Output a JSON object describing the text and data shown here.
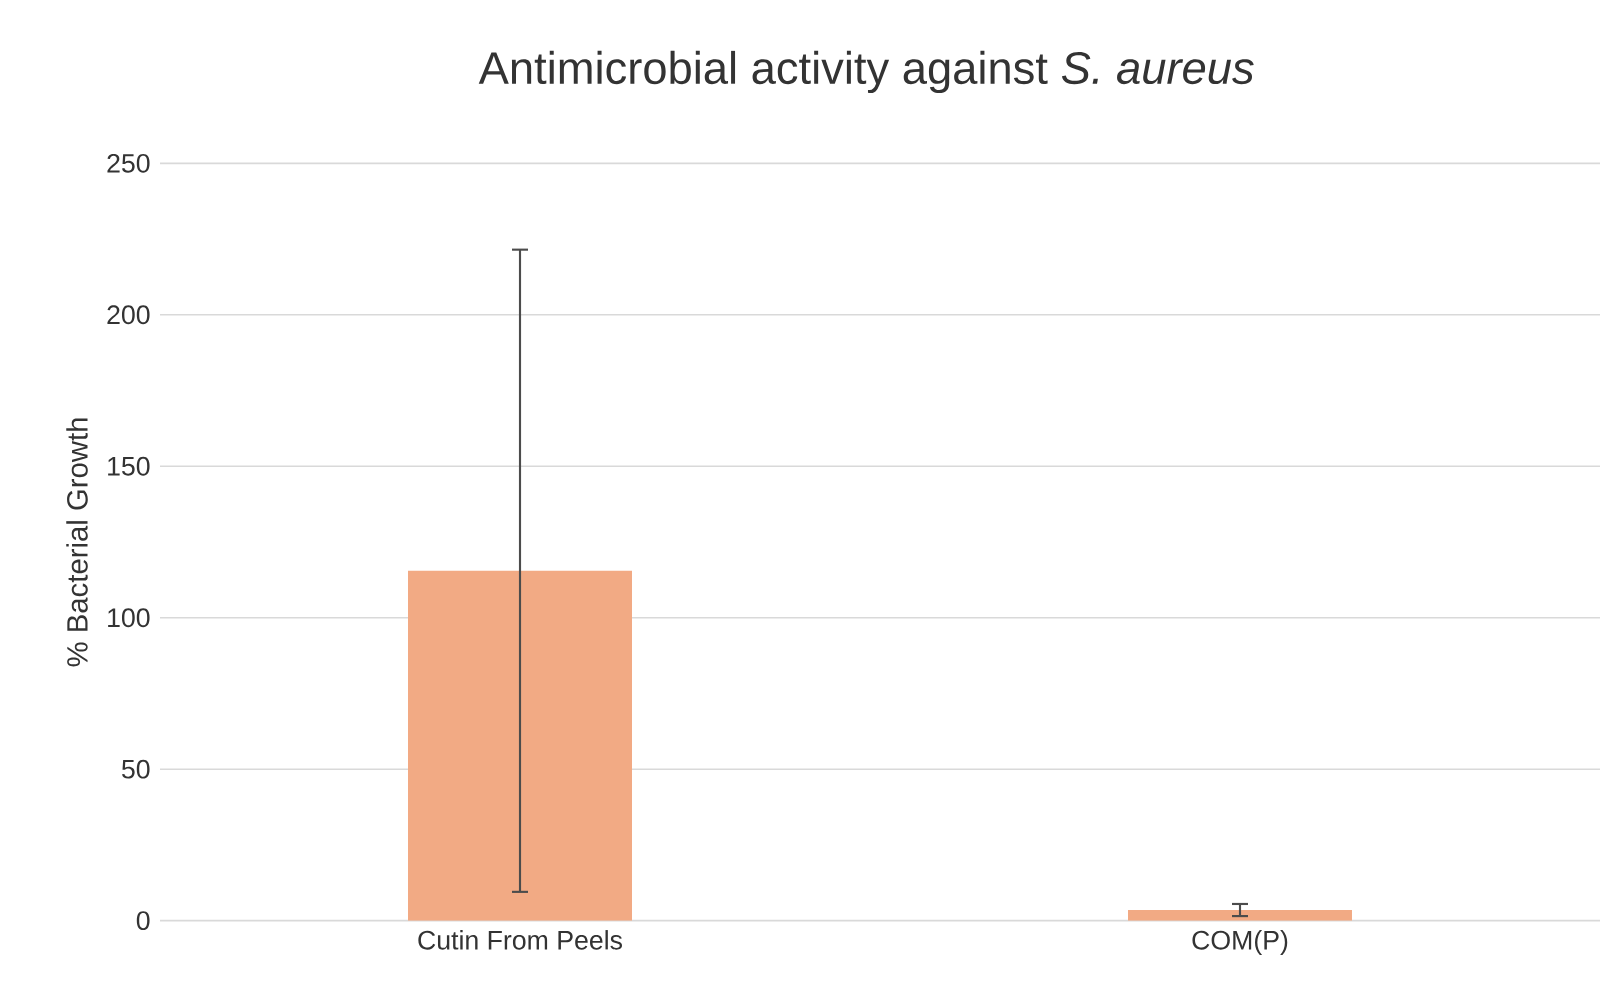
{
  "chart_data": {
    "type": "bar",
    "title": "Antimicrobial activity against *S. aureus*",
    "ylabel": "% Bacterial Growth",
    "categories": [
      "Cutin From Peels",
      "COM(P)"
    ],
    "values": [
      115.5,
      3.5
    ],
    "errors": [
      106,
      2
    ],
    "color": "#f2aa84",
    "ylim": [
      0,
      250
    ],
    "yticks": [
      0,
      50,
      100,
      150,
      200,
      250
    ],
    "grid": "y"
  }
}
